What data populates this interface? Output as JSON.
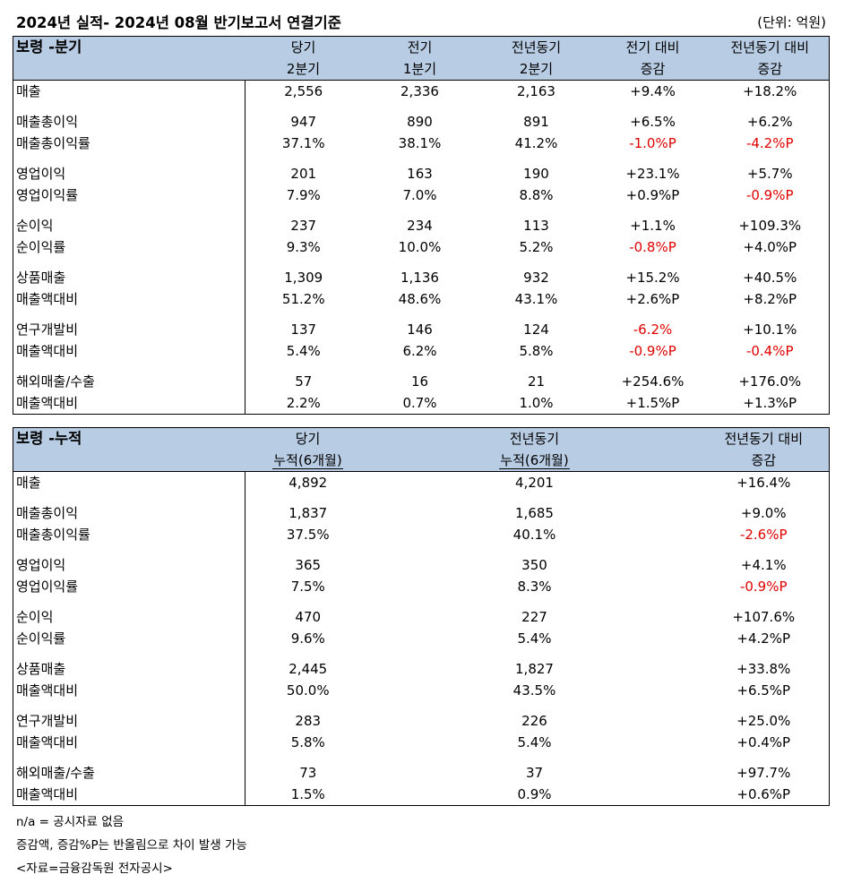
{
  "title": "2024년 실적- 2024년 08월 반기보고서 연결기준",
  "unit": "(단위: 억원)",
  "quarter_table": {
    "name": "보령 -분기",
    "headers": [
      [
        "당기",
        "2분기"
      ],
      [
        "전기",
        "1분기"
      ],
      [
        "전년동기",
        "2분기"
      ],
      [
        "전기 대비",
        "증감"
      ],
      [
        "전년동기 대비",
        "증감"
      ]
    ],
    "rows": [
      {
        "label": "매출",
        "values": [
          "2,556",
          "2,336",
          "2,163",
          "+9.4%",
          "+18.2%"
        ]
      },
      {
        "label": "매출총이익",
        "values": [
          "947",
          "890",
          "891",
          "+6.5%",
          "+6.2%"
        ]
      },
      {
        "label": "매출총이익률",
        "values": [
          "37.1%",
          "38.1%",
          "41.2%",
          "-1.0%P",
          "-4.2%P"
        ]
      },
      {
        "label": "영업이익",
        "values": [
          "201",
          "163",
          "190",
          "+23.1%",
          "+5.7%"
        ]
      },
      {
        "label": "영업이익률",
        "values": [
          "7.9%",
          "7.0%",
          "8.8%",
          "+0.9%P",
          "-0.9%P"
        ]
      },
      {
        "label": "순이익",
        "values": [
          "237",
          "234",
          "113",
          "+1.1%",
          "+109.3%"
        ]
      },
      {
        "label": "순이익률",
        "values": [
          "9.3%",
          "10.0%",
          "5.2%",
          "-0.8%P",
          "+4.0%P"
        ]
      },
      {
        "label": "상품매출",
        "values": [
          "1,309",
          "1,136",
          "932",
          "+15.2%",
          "+40.5%"
        ]
      },
      {
        "label": "매출액대비",
        "values": [
          "51.2%",
          "48.6%",
          "43.1%",
          "+2.6%P",
          "+8.2%P"
        ]
      },
      {
        "label": "연구개발비",
        "values": [
          "137",
          "146",
          "124",
          "-6.2%",
          "+10.1%"
        ]
      },
      {
        "label": "매출액대비",
        "values": [
          "5.4%",
          "6.2%",
          "5.8%",
          "-0.9%P",
          "-0.4%P"
        ]
      },
      {
        "label": "해외매출/수출",
        "values": [
          "57",
          "16",
          "21",
          "+254.6%",
          "+176.0%"
        ]
      },
      {
        "label": "매출액대비",
        "values": [
          "2.2%",
          "0.7%",
          "1.0%",
          "+1.5%P",
          "+1.3%P"
        ]
      }
    ]
  },
  "cumulative_table": {
    "name": "보령 -누적",
    "headers": [
      [
        "당기",
        "누적(6개월)"
      ],
      [
        "전년동기",
        "누적(6개월)"
      ],
      [
        "전년동기 대비",
        "증감"
      ]
    ],
    "rows": [
      {
        "label": "매출",
        "values": [
          "4,892",
          "4,201",
          "+16.4%"
        ]
      },
      {
        "label": "매출총이익",
        "values": [
          "1,837",
          "1,685",
          "+9.0%"
        ]
      },
      {
        "label": "매출총이익률",
        "values": [
          "37.5%",
          "40.1%",
          "-2.6%P"
        ]
      },
      {
        "label": "영업이익",
        "values": [
          "365",
          "350",
          "+4.1%"
        ]
      },
      {
        "label": "영업이익률",
        "values": [
          "7.5%",
          "8.3%",
          "-0.9%P"
        ]
      },
      {
        "label": "순이익",
        "values": [
          "470",
          "227",
          "+107.6%"
        ]
      },
      {
        "label": "순이익률",
        "values": [
          "9.6%",
          "5.4%",
          "+4.2%P"
        ]
      },
      {
        "label": "상품매출",
        "values": [
          "2,445",
          "1,827",
          "+33.8%"
        ]
      },
      {
        "label": "매출액대비",
        "values": [
          "50.0%",
          "43.5%",
          "+6.5%P"
        ]
      },
      {
        "label": "연구개발비",
        "values": [
          "283",
          "226",
          "+25.0%"
        ]
      },
      {
        "label": "매출액대비",
        "values": [
          "5.8%",
          "5.4%",
          "+0.4%P"
        ]
      },
      {
        "label": "해외매출/수출",
        "values": [
          "73",
          "37",
          "+97.7%"
        ]
      },
      {
        "label": "매출액대비",
        "values": [
          "1.5%",
          "0.9%",
          "+0.6%P"
        ]
      }
    ]
  },
  "notes": [
    "n/a = 공시자료 없음",
    "증감액, 증감%P는 반올림으로 차이 발생 가능",
    "<자료=금융감독원 전자공시>"
  ],
  "colors": {
    "header_bg": "#b8cce4",
    "negative": "#e00000"
  }
}
